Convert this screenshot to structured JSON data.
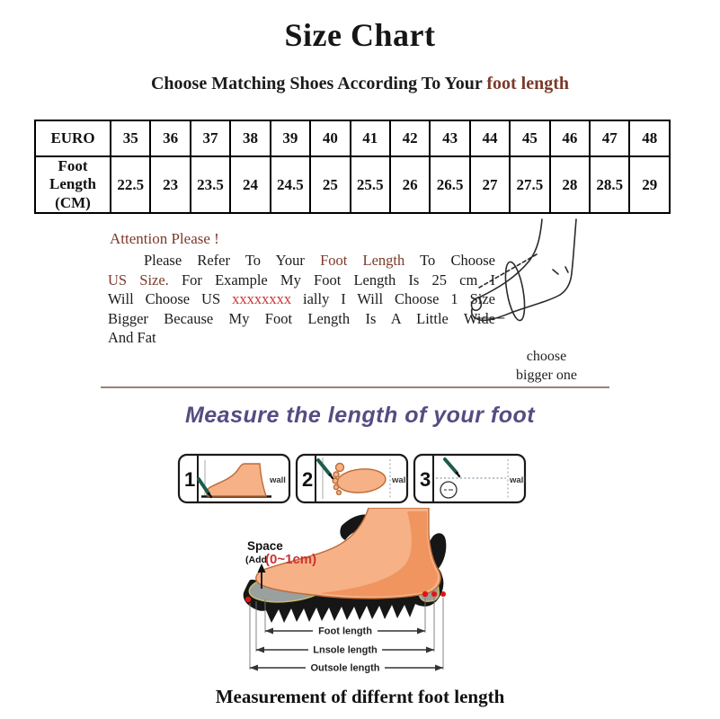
{
  "title": "Size Chart",
  "subtitle": {
    "prefix": "Choose Matching Shoes According To Your ",
    "highlight": "foot length"
  },
  "size_table": {
    "header_label": "EURO",
    "row2_label": "Foot\nLength\n(CM)",
    "euro_sizes": [
      "35",
      "36",
      "37",
      "38",
      "39",
      "40",
      "41",
      "42",
      "43",
      "44",
      "45",
      "46",
      "47",
      "48"
    ],
    "foot_lengths_cm": [
      "22.5",
      "23",
      "23.5",
      "24",
      "24.5",
      "25",
      "25.5",
      "26",
      "26.5",
      "27",
      "27.5",
      "28",
      "28.5",
      "29"
    ]
  },
  "attention": {
    "heading": "Attention Please !",
    "lines": [
      {
        "indent": true,
        "justify": true,
        "segments": [
          {
            "t": "Please Refer To Your ",
            "c": ""
          },
          {
            "t": "Foot Length",
            "c": "maroon"
          },
          {
            "t": " To Choose",
            "c": ""
          }
        ]
      },
      {
        "indent": false,
        "justify": true,
        "segments": [
          {
            "t": "US Size.",
            "c": "maroon"
          },
          {
            "t": " For Example My Foot Length Is 25 cm I",
            "c": ""
          }
        ]
      },
      {
        "indent": false,
        "justify": true,
        "segments": [
          {
            "t": "Will Choose US ",
            "c": ""
          },
          {
            "t": "xxxxxxxx",
            "c": "red"
          },
          {
            "t": " ially I Will Choose 1 Size",
            "c": ""
          }
        ]
      },
      {
        "indent": false,
        "justify": true,
        "segments": [
          {
            "t": "Bigger Because My Foot Length Is A Little Wide",
            "c": ""
          }
        ]
      },
      {
        "indent": false,
        "justify": false,
        "segments": [
          {
            "t": "And Fat",
            "c": ""
          }
        ]
      }
    ]
  },
  "foot_note": {
    "line1": "choose",
    "line2": "bigger one"
  },
  "measure_heading": "Measure the length of your foot",
  "steps": {
    "panels": [
      {
        "number": "1",
        "wall_label": "wall"
      },
      {
        "number": "2",
        "wall_label": "wall"
      },
      {
        "number": "3",
        "wall_label": "wall"
      }
    ]
  },
  "diagram": {
    "space_line1": "Space",
    "space_line2_prefix": "(Add",
    "space_line2_value": "(0~1cm)",
    "arrow_labels": [
      "Foot length",
      "Lnsole length",
      "Outsole length"
    ]
  },
  "caption": "Measurement of differnt foot length",
  "colors": {
    "maroon": "#7b3a2a",
    "red": "#c93434",
    "purple": "#564c82",
    "divider": "#9d8175",
    "peach": "#f6b186",
    "peach_shade": "#ee8c52",
    "foot_outline": "#bc6b36",
    "pen_green": "#1d5c4a",
    "red_dot": "#e01414",
    "insole_gray": "#9aa0a0",
    "insole_edge": "#c9bd67",
    "ink": "#1a1a1a"
  }
}
